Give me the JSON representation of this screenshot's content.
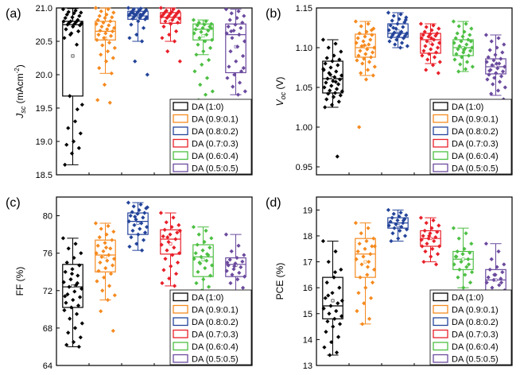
{
  "figure": {
    "legend_entries": [
      "DA (1:0)",
      "DA (0.9:0.1)",
      "DA (0.8:0.2)",
      "DA (0.7:0.3)",
      "DA (0.6:0.4)",
      "DA (0.5:0.5)"
    ],
    "legend_colors": [
      "#000000",
      "#f58a1f",
      "#24449a",
      "#e8202a",
      "#4dbf43",
      "#6b4a9e"
    ]
  },
  "chart_data": [
    {
      "type": "box",
      "panel_label": "(a)",
      "ylabel": "J_sc (mAcm^-2)",
      "ylabel_main": "J",
      "ylabel_sub": "sc",
      "ylabel_rest": " (mAcm",
      "ylabel_sup": "-2",
      "ylabel_close": ")",
      "ylim": [
        18.5,
        21.0
      ],
      "yticks": [
        18.5,
        19.0,
        19.5,
        20.0,
        20.5,
        21.0
      ],
      "ytick_labels": [
        "18.5",
        "19.0",
        "19.5",
        "20.0",
        "20.5",
        "21.0"
      ],
      "legend_position": "bottom-right",
      "categories": [
        "DA (1:0)",
        "DA (0.9:0.1)",
        "DA (0.8:0.2)",
        "DA (0.7:0.3)",
        "DA (0.6:0.4)",
        "DA (0.5:0.5)"
      ],
      "boxes": [
        {
          "min": 18.65,
          "q1": 19.68,
          "median": 20.75,
          "q3": 20.8,
          "max": 20.99
        },
        {
          "min": 20.02,
          "q1": 20.52,
          "median": 20.65,
          "q3": 20.8,
          "max": 21.0
        },
        {
          "min": 20.5,
          "q1": 20.83,
          "median": 20.88,
          "q3": 20.95,
          "max": 21.0
        },
        {
          "min": 20.5,
          "q1": 20.77,
          "median": 20.86,
          "q3": 20.93,
          "max": 21.0
        },
        {
          "min": 20.3,
          "q1": 20.52,
          "median": 20.68,
          "q3": 20.76,
          "max": 20.82
        },
        {
          "min": 19.7,
          "q1": 20.03,
          "median": 20.6,
          "q3": 20.76,
          "max": 20.98
        }
      ],
      "means": [
        20.28,
        20.55,
        20.84,
        20.8,
        20.58,
        20.42
      ],
      "points": [
        [
          20.98,
          20.96,
          20.94,
          20.93,
          20.92,
          20.9,
          20.88,
          20.86,
          20.85,
          20.82,
          20.8,
          20.8,
          20.79,
          20.78,
          20.77,
          20.76,
          20.75,
          20.74,
          20.72,
          20.68,
          20.65,
          20.62,
          20.55,
          20.45,
          19.68,
          19.55,
          19.3,
          19.2,
          19.12,
          19.0,
          18.95,
          18.9,
          18.82,
          18.65,
          19.48,
          20.6
        ],
        [
          21.0,
          20.98,
          20.95,
          20.93,
          20.9,
          20.88,
          20.86,
          20.85,
          20.82,
          20.8,
          20.78,
          20.76,
          20.74,
          20.72,
          20.7,
          20.68,
          20.66,
          20.65,
          20.62,
          20.6,
          20.58,
          20.55,
          20.52,
          20.48,
          20.44,
          20.4,
          20.35,
          20.3,
          20.25,
          20.2,
          20.1,
          20.02,
          19.85,
          19.62,
          19.58
        ],
        [
          21.0,
          20.99,
          20.98,
          20.97,
          20.96,
          20.95,
          20.94,
          20.93,
          20.92,
          20.91,
          20.9,
          20.89,
          20.88,
          20.87,
          20.86,
          20.85,
          20.84,
          20.83,
          20.8,
          20.75,
          20.7,
          20.6,
          20.55,
          20.5,
          20.2,
          20.0,
          20.9,
          20.92
        ],
        [
          21.0,
          20.98,
          20.96,
          20.95,
          20.94,
          20.93,
          20.92,
          20.91,
          20.9,
          20.89,
          20.88,
          20.87,
          20.86,
          20.85,
          20.84,
          20.82,
          20.8,
          20.78,
          20.76,
          20.72,
          20.65,
          20.6,
          20.55,
          20.5,
          20.35,
          20.2,
          19.6,
          20.95
        ],
        [
          20.82,
          20.8,
          20.78,
          20.76,
          20.75,
          20.74,
          20.72,
          20.7,
          20.68,
          20.66,
          20.64,
          20.62,
          20.6,
          20.55,
          20.52,
          20.5,
          20.45,
          20.4,
          20.35,
          20.3,
          20.22,
          20.15,
          20.05,
          19.95,
          19.85,
          19.75,
          19.7,
          19.62,
          20.7
        ],
        [
          20.98,
          20.95,
          20.92,
          20.88,
          20.85,
          20.82,
          20.78,
          20.75,
          20.72,
          20.7,
          20.66,
          20.62,
          20.6,
          20.55,
          20.5,
          20.42,
          20.35,
          20.28,
          20.2,
          20.12,
          20.05,
          20.0,
          19.95,
          19.88,
          19.82,
          19.75,
          19.7,
          20.65,
          20.1
        ]
      ]
    },
    {
      "type": "box",
      "panel_label": "(b)",
      "ylabel": "V_oc (V)",
      "ylabel_main": "V",
      "ylabel_sub": "oc",
      "ylabel_rest": " (V)",
      "ylabel_sup": "",
      "ylabel_close": "",
      "ylim": [
        0.94,
        1.15
      ],
      "yticks": [
        0.95,
        1.0,
        1.05,
        1.1,
        1.15
      ],
      "ytick_labels": [
        "0.95",
        "1.00",
        "1.05",
        "1.10",
        "1.15"
      ],
      "legend_position": "bottom-right",
      "categories": [
        "DA (1:0)",
        "DA (0.9:0.1)",
        "DA (0.8:0.2)",
        "DA (0.7:0.3)",
        "DA (0.6:0.4)",
        "DA (0.5:0.5)"
      ],
      "boxes": [
        {
          "min": 1.025,
          "q1": 1.043,
          "median": 1.061,
          "q3": 1.083,
          "max": 1.11
        },
        {
          "min": 1.065,
          "q1": 1.088,
          "median": 1.1,
          "q3": 1.117,
          "max": 1.133
        },
        {
          "min": 1.1,
          "q1": 1.113,
          "median": 1.118,
          "q3": 1.13,
          "max": 1.144
        },
        {
          "min": 1.08,
          "q1": 1.093,
          "median": 1.11,
          "q3": 1.118,
          "max": 1.13
        },
        {
          "min": 1.07,
          "q1": 1.09,
          "median": 1.1,
          "q3": 1.11,
          "max": 1.133
        },
        {
          "min": 1.04,
          "q1": 1.067,
          "median": 1.076,
          "q3": 1.086,
          "max": 1.116
        }
      ],
      "means": [
        1.062,
        1.101,
        1.121,
        1.106,
        1.1,
        1.077
      ],
      "points": [
        [
          1.11,
          1.105,
          1.1,
          1.095,
          1.09,
          1.087,
          1.085,
          1.083,
          1.08,
          1.078,
          1.075,
          1.072,
          1.07,
          1.068,
          1.065,
          1.063,
          1.061,
          1.06,
          1.058,
          1.056,
          1.054,
          1.052,
          1.05,
          1.048,
          1.046,
          1.045,
          1.043,
          1.042,
          1.04,
          1.038,
          1.035,
          1.032,
          1.028,
          1.025,
          0.963,
          1.066,
          1.073,
          1.057
        ],
        [
          1.133,
          1.13,
          1.127,
          1.124,
          1.12,
          1.118,
          1.116,
          1.114,
          1.112,
          1.11,
          1.108,
          1.106,
          1.104,
          1.102,
          1.1,
          1.098,
          1.096,
          1.094,
          1.092,
          1.09,
          1.088,
          1.086,
          1.084,
          1.082,
          1.08,
          1.076,
          1.072,
          1.068,
          1.065,
          1.06,
          1.0,
          1.122,
          1.103
        ],
        [
          1.144,
          1.142,
          1.14,
          1.138,
          1.136,
          1.134,
          1.132,
          1.13,
          1.128,
          1.126,
          1.124,
          1.122,
          1.12,
          1.119,
          1.118,
          1.117,
          1.116,
          1.115,
          1.114,
          1.113,
          1.112,
          1.11,
          1.108,
          1.106,
          1.104,
          1.102,
          1.1,
          1.125,
          1.135
        ],
        [
          1.13,
          1.128,
          1.126,
          1.124,
          1.122,
          1.12,
          1.118,
          1.117,
          1.116,
          1.115,
          1.114,
          1.112,
          1.11,
          1.108,
          1.106,
          1.104,
          1.102,
          1.1,
          1.098,
          1.096,
          1.094,
          1.092,
          1.09,
          1.088,
          1.085,
          1.082,
          1.078,
          1.072,
          1.068,
          1.112
        ],
        [
          1.133,
          1.13,
          1.127,
          1.124,
          1.12,
          1.118,
          1.116,
          1.114,
          1.112,
          1.11,
          1.108,
          1.106,
          1.104,
          1.102,
          1.1,
          1.099,
          1.098,
          1.096,
          1.094,
          1.092,
          1.09,
          1.088,
          1.085,
          1.082,
          1.079,
          1.076,
          1.073,
          1.07,
          1.108,
          1.097
        ],
        [
          1.116,
          1.112,
          1.108,
          1.104,
          1.1,
          1.097,
          1.094,
          1.091,
          1.088,
          1.086,
          1.084,
          1.082,
          1.08,
          1.078,
          1.076,
          1.074,
          1.072,
          1.07,
          1.068,
          1.066,
          1.064,
          1.062,
          1.06,
          1.057,
          1.054,
          1.05,
          1.046,
          1.042,
          1.035,
          1.08,
          1.071
        ]
      ]
    },
    {
      "type": "box",
      "panel_label": "(c)",
      "ylabel": "FF (%)",
      "ylabel_main": "FF (%)",
      "ylabel_sub": "",
      "ylabel_rest": "",
      "ylabel_sup": "",
      "ylabel_close": "",
      "ylim": [
        64,
        82
      ],
      "yticks": [
        64,
        68,
        72,
        76,
        80
      ],
      "ytick_labels": [
        "64",
        "68",
        "72",
        "76",
        "80"
      ],
      "legend_position": "bottom-right",
      "categories": [
        "DA (1:0)",
        "DA (0.9:0.1)",
        "DA (0.8:0.2)",
        "DA (0.7:0.3)",
        "DA (0.6:0.4)",
        "DA (0.5:0.5)"
      ],
      "boxes": [
        {
          "min": 66.0,
          "q1": 70.2,
          "median": 72.4,
          "q3": 74.8,
          "max": 77.6
        },
        {
          "min": 71.0,
          "q1": 74.0,
          "median": 75.8,
          "q3": 77.4,
          "max": 79.2
        },
        {
          "min": 76.3,
          "q1": 78.0,
          "median": 79.4,
          "q3": 80.3,
          "max": 81.4
        },
        {
          "min": 72.5,
          "q1": 75.9,
          "median": 77.5,
          "q3": 78.5,
          "max": 80.3
        },
        {
          "min": 71.5,
          "q1": 73.5,
          "median": 75.6,
          "q3": 76.9,
          "max": 78.8
        },
        {
          "min": 71.8,
          "q1": 73.5,
          "median": 74.8,
          "q3": 75.5,
          "max": 78.0
        }
      ],
      "means": [
        72.5,
        75.6,
        79.2,
        77.0,
        75.3,
        74.7
      ],
      "points": [
        [
          77.6,
          77.0,
          76.5,
          76.0,
          75.5,
          75.0,
          74.7,
          74.3,
          74.0,
          73.6,
          73.2,
          72.9,
          72.6,
          72.4,
          72.2,
          71.9,
          71.6,
          71.3,
          71.0,
          70.7,
          70.4,
          70.2,
          69.9,
          69.5,
          69.0,
          68.5,
          68.0,
          67.5,
          67.0,
          66.5,
          66.2,
          66.0,
          73.8,
          71.4,
          72.8
        ],
        [
          79.2,
          78.9,
          78.6,
          78.3,
          78.0,
          77.7,
          77.4,
          77.1,
          76.8,
          76.5,
          76.2,
          76.0,
          75.8,
          75.6,
          75.4,
          75.2,
          75.0,
          74.7,
          74.4,
          74.1,
          73.8,
          73.4,
          73.0,
          72.5,
          72.0,
          71.5,
          71.0,
          69.8,
          67.7,
          76.6
        ],
        [
          81.4,
          81.2,
          81.0,
          80.8,
          80.6,
          80.4,
          80.3,
          80.2,
          80.0,
          79.8,
          79.6,
          79.4,
          79.2,
          79.0,
          78.8,
          78.6,
          78.4,
          78.2,
          78.0,
          77.7,
          77.4,
          77.0,
          76.7,
          76.3,
          79.9,
          80.9
        ],
        [
          80.3,
          79.8,
          79.3,
          79.0,
          78.8,
          78.5,
          78.2,
          78.0,
          77.8,
          77.5,
          77.2,
          76.9,
          76.6,
          76.3,
          76.0,
          75.8,
          75.4,
          75.0,
          74.6,
          74.2,
          73.8,
          73.3,
          72.8,
          72.5,
          77.7,
          78.4
        ],
        [
          78.8,
          78.4,
          78.0,
          77.6,
          77.2,
          76.9,
          76.6,
          76.3,
          76.0,
          75.8,
          75.6,
          75.4,
          75.2,
          75.0,
          74.7,
          74.4,
          74.0,
          73.6,
          73.2,
          72.8,
          72.4,
          72.0,
          71.5,
          75.9,
          74.9
        ],
        [
          78.0,
          76.8,
          76.2,
          75.8,
          75.5,
          75.3,
          75.1,
          74.9,
          74.7,
          74.5,
          74.3,
          74.1,
          73.9,
          73.7,
          73.5,
          73.2,
          72.8,
          72.3,
          71.8,
          71.3,
          70.2,
          74.6,
          75.0
        ]
      ]
    },
    {
      "type": "box",
      "panel_label": "(d)",
      "ylabel": "PCE (%)",
      "ylabel_main": "PCE (%)",
      "ylabel_sub": "",
      "ylabel_rest": "",
      "ylabel_sup": "",
      "ylabel_close": "",
      "ylim": [
        13,
        19.5
      ],
      "yticks": [
        13,
        14,
        15,
        16,
        17,
        18,
        19
      ],
      "ytick_labels": [
        "13",
        "14",
        "15",
        "16",
        "17",
        "18",
        "19"
      ],
      "legend_position": "bottom-right",
      "categories": [
        "DA (1:0)",
        "DA (0.9:0.1)",
        "DA (0.8:0.2)",
        "DA (0.7:0.3)",
        "DA (0.6:0.4)",
        "DA (0.5:0.5)"
      ],
      "boxes": [
        {
          "min": 13.4,
          "q1": 14.8,
          "median": 15.3,
          "q3": 16.4,
          "max": 17.8
        },
        {
          "min": 14.6,
          "q1": 16.4,
          "median": 17.3,
          "q3": 17.9,
          "max": 18.5
        },
        {
          "min": 17.8,
          "q1": 18.3,
          "median": 18.5,
          "q3": 18.7,
          "max": 19.0
        },
        {
          "min": 17.0,
          "q1": 17.6,
          "median": 17.9,
          "q3": 18.2,
          "max": 18.7
        },
        {
          "min": 16.0,
          "q1": 16.7,
          "median": 17.1,
          "q3": 17.4,
          "max": 18.3
        },
        {
          "min": 15.1,
          "q1": 15.9,
          "median": 16.3,
          "q3": 16.7,
          "max": 17.7
        }
      ],
      "means": [
        15.5,
        17.0,
        18.4,
        17.9,
        17.1,
        16.3
      ],
      "points": [
        [
          17.8,
          17.4,
          17.0,
          16.7,
          16.4,
          16.2,
          16.0,
          15.8,
          15.6,
          15.4,
          15.3,
          15.2,
          15.1,
          15.0,
          14.9,
          14.8,
          14.7,
          14.6,
          14.5,
          14.3,
          14.1,
          13.9,
          13.7,
          13.5,
          13.4,
          15.5,
          16.6,
          15.7
        ],
        [
          18.5,
          18.3,
          18.1,
          17.9,
          17.8,
          17.7,
          17.6,
          17.5,
          17.4,
          17.3,
          17.2,
          17.1,
          17.0,
          16.9,
          16.7,
          16.5,
          16.4,
          16.2,
          16.0,
          15.8,
          15.6,
          15.4,
          15.1,
          14.8,
          14.6,
          17.6,
          16.8
        ],
        [
          19.0,
          18.9,
          18.85,
          18.8,
          18.75,
          18.7,
          18.65,
          18.6,
          18.55,
          18.5,
          18.45,
          18.4,
          18.35,
          18.3,
          18.25,
          18.2,
          18.1,
          18.0,
          17.9,
          17.8,
          18.6
        ],
        [
          18.7,
          18.6,
          18.5,
          18.4,
          18.3,
          18.2,
          18.15,
          18.1,
          18.0,
          17.95,
          17.9,
          17.85,
          17.8,
          17.7,
          17.6,
          17.5,
          17.4,
          17.3,
          17.2,
          17.0,
          16.9,
          18.0,
          17.6
        ],
        [
          18.3,
          18.1,
          17.9,
          17.7,
          17.5,
          17.4,
          17.35,
          17.3,
          17.2,
          17.1,
          17.0,
          16.9,
          16.8,
          16.7,
          16.6,
          16.5,
          16.4,
          16.2,
          16.0,
          17.2,
          16.9
        ],
        [
          17.7,
          17.4,
          17.1,
          16.9,
          16.8,
          16.7,
          16.6,
          16.5,
          16.4,
          16.35,
          16.3,
          16.2,
          16.1,
          16.0,
          15.9,
          15.8,
          15.6,
          15.4,
          15.2,
          15.1,
          16.2,
          16.5
        ]
      ]
    }
  ]
}
